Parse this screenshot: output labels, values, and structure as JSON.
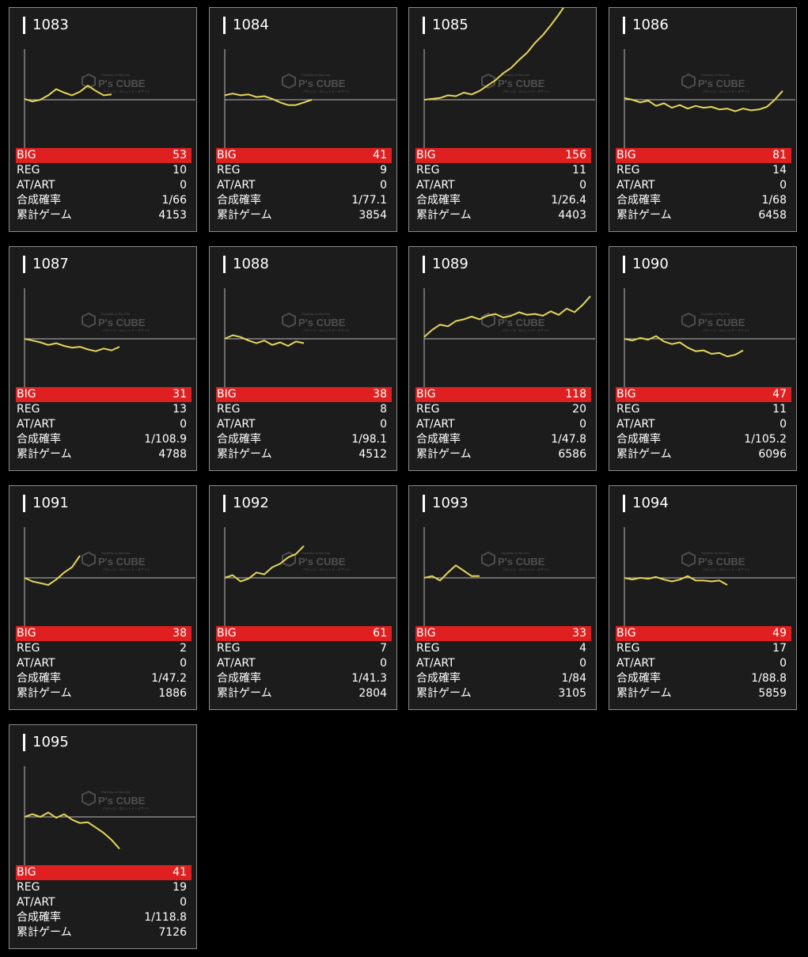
{
  "labels": {
    "big": "BIG",
    "reg": "REG",
    "at": "AT/ART",
    "prob": "合成確率",
    "games": "累計ゲーム"
  },
  "watermark": {
    "brand": "P's CUBE",
    "tagline": "Pachinko & Slot Info",
    "sub": "パチンコ・スロットデータサイト"
  },
  "colors": {
    "line": "#e6d65a",
    "highlight": "#e02020"
  },
  "machines": [
    {
      "id": "1083",
      "big": "53",
      "reg": "10",
      "at": "0",
      "prob": "1/66",
      "games": "4153",
      "trend": [
        0.01,
        -0.02,
        0.0,
        0.05,
        0.12,
        0.08,
        0.05,
        0.09,
        0.16,
        0.1,
        0.05,
        0.06
      ]
    },
    {
      "id": "1084",
      "big": "41",
      "reg": "9",
      "at": "0",
      "prob": "1/77.1",
      "games": "3854",
      "trend": [
        0.05,
        0.07,
        0.05,
        0.06,
        0.03,
        0.04,
        0.01,
        -0.03,
        -0.06,
        -0.06,
        -0.03,
        0.0
      ]
    },
    {
      "id": "1085",
      "big": "156",
      "reg": "11",
      "at": "0",
      "prob": "1/26.4",
      "games": "4403",
      "trend": [
        0.0,
        0.01,
        0.02,
        0.05,
        0.04,
        0.08,
        0.06,
        0.1,
        0.16,
        0.22,
        0.3,
        0.36,
        0.45,
        0.53,
        0.64,
        0.73,
        0.84,
        0.96,
        1.09,
        1.2
      ]
    },
    {
      "id": "1086",
      "big": "81",
      "reg": "14",
      "at": "0",
      "prob": "1/68",
      "games": "6458",
      "trend": [
        0.02,
        0.0,
        -0.03,
        -0.01,
        -0.07,
        -0.04,
        -0.09,
        -0.06,
        -0.1,
        -0.07,
        -0.09,
        -0.08,
        -0.11,
        -0.1,
        -0.13,
        -0.1,
        -0.12,
        -0.11,
        -0.08,
        0.0,
        0.1
      ]
    },
    {
      "id": "1087",
      "big": "31",
      "reg": "13",
      "at": "0",
      "prob": "1/108.9",
      "games": "4788",
      "trend": [
        0.0,
        -0.02,
        -0.04,
        -0.07,
        -0.05,
        -0.08,
        -0.1,
        -0.09,
        -0.12,
        -0.14,
        -0.11,
        -0.13,
        -0.09
      ]
    },
    {
      "id": "1088",
      "big": "38",
      "reg": "8",
      "at": "0",
      "prob": "1/98.1",
      "games": "4512",
      "trend": [
        0.0,
        0.04,
        0.02,
        -0.02,
        -0.05,
        -0.02,
        -0.07,
        -0.04,
        -0.08,
        -0.03,
        -0.05
      ]
    },
    {
      "id": "1089",
      "big": "118",
      "reg": "20",
      "at": "0",
      "prob": "1/47.8",
      "games": "6586",
      "trend": [
        0.02,
        0.1,
        0.16,
        0.14,
        0.2,
        0.22,
        0.25,
        0.22,
        0.26,
        0.28,
        0.24,
        0.26,
        0.3,
        0.27,
        0.28,
        0.26,
        0.31,
        0.27,
        0.34,
        0.3,
        0.38,
        0.48
      ]
    },
    {
      "id": "1090",
      "big": "47",
      "reg": "11",
      "at": "0",
      "prob": "1/105.2",
      "games": "6096",
      "trend": [
        0.0,
        -0.02,
        0.01,
        -0.01,
        0.03,
        -0.03,
        -0.06,
        -0.04,
        -0.1,
        -0.14,
        -0.13,
        -0.17,
        -0.16,
        -0.2,
        -0.18,
        -0.13
      ]
    },
    {
      "id": "1091",
      "big": "38",
      "reg": "2",
      "at": "0",
      "prob": "1/47.2",
      "games": "1886",
      "trend": [
        0.0,
        -0.04,
        -0.06,
        -0.08,
        -0.02,
        0.06,
        0.12,
        0.25
      ]
    },
    {
      "id": "1092",
      "big": "61",
      "reg": "7",
      "at": "0",
      "prob": "1/41.3",
      "games": "2804",
      "trend": [
        0.0,
        0.03,
        -0.04,
        -0.01,
        0.06,
        0.04,
        0.12,
        0.16,
        0.23,
        0.27,
        0.36
      ]
    },
    {
      "id": "1093",
      "big": "33",
      "reg": "4",
      "at": "0",
      "prob": "1/84",
      "games": "3105",
      "trend": [
        0.0,
        0.02,
        -0.03,
        0.06,
        0.14,
        0.08,
        0.02,
        0.02
      ]
    },
    {
      "id": "1094",
      "big": "49",
      "reg": "17",
      "at": "0",
      "prob": "1/88.8",
      "games": "5859",
      "trend": [
        0.0,
        -0.02,
        0.0,
        -0.01,
        0.01,
        -0.02,
        -0.04,
        -0.02,
        0.02,
        -0.03,
        -0.03,
        -0.04,
        -0.03,
        -0.08
      ]
    },
    {
      "id": "1095",
      "big": "41",
      "reg": "19",
      "at": "0",
      "prob": "1/118.8",
      "games": "7126",
      "trend": [
        0.0,
        0.03,
        0.0,
        0.05,
        -0.01,
        0.03,
        -0.03,
        -0.07,
        -0.06,
        -0.12,
        -0.18,
        -0.26,
        -0.36
      ]
    }
  ]
}
